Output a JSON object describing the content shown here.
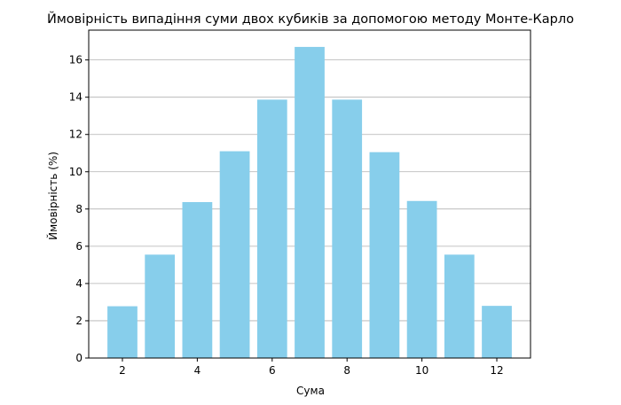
{
  "chart_data": {
    "type": "bar",
    "title": "Ймовірність випадіння суми двох кубиків за допомогою методу Монте-Карло",
    "xlabel": "Сума",
    "ylabel": "Ймовірність (%)",
    "categories": [
      2,
      3,
      4,
      5,
      6,
      7,
      8,
      9,
      10,
      11,
      12
    ],
    "values": [
      2.78,
      5.55,
      8.37,
      11.1,
      13.87,
      16.7,
      13.87,
      11.05,
      8.43,
      5.55,
      2.8
    ],
    "xlim": [
      1.1,
      12.9
    ],
    "ylim": [
      0,
      17.6
    ],
    "xticks": [
      2,
      4,
      6,
      8,
      10,
      12
    ],
    "yticks": [
      0,
      2,
      4,
      6,
      8,
      10,
      12,
      14,
      16
    ],
    "grid": "y-only",
    "bar_color": "#87CEEB",
    "grid_color": "#b0b0b0",
    "axis_color": "#000000"
  }
}
